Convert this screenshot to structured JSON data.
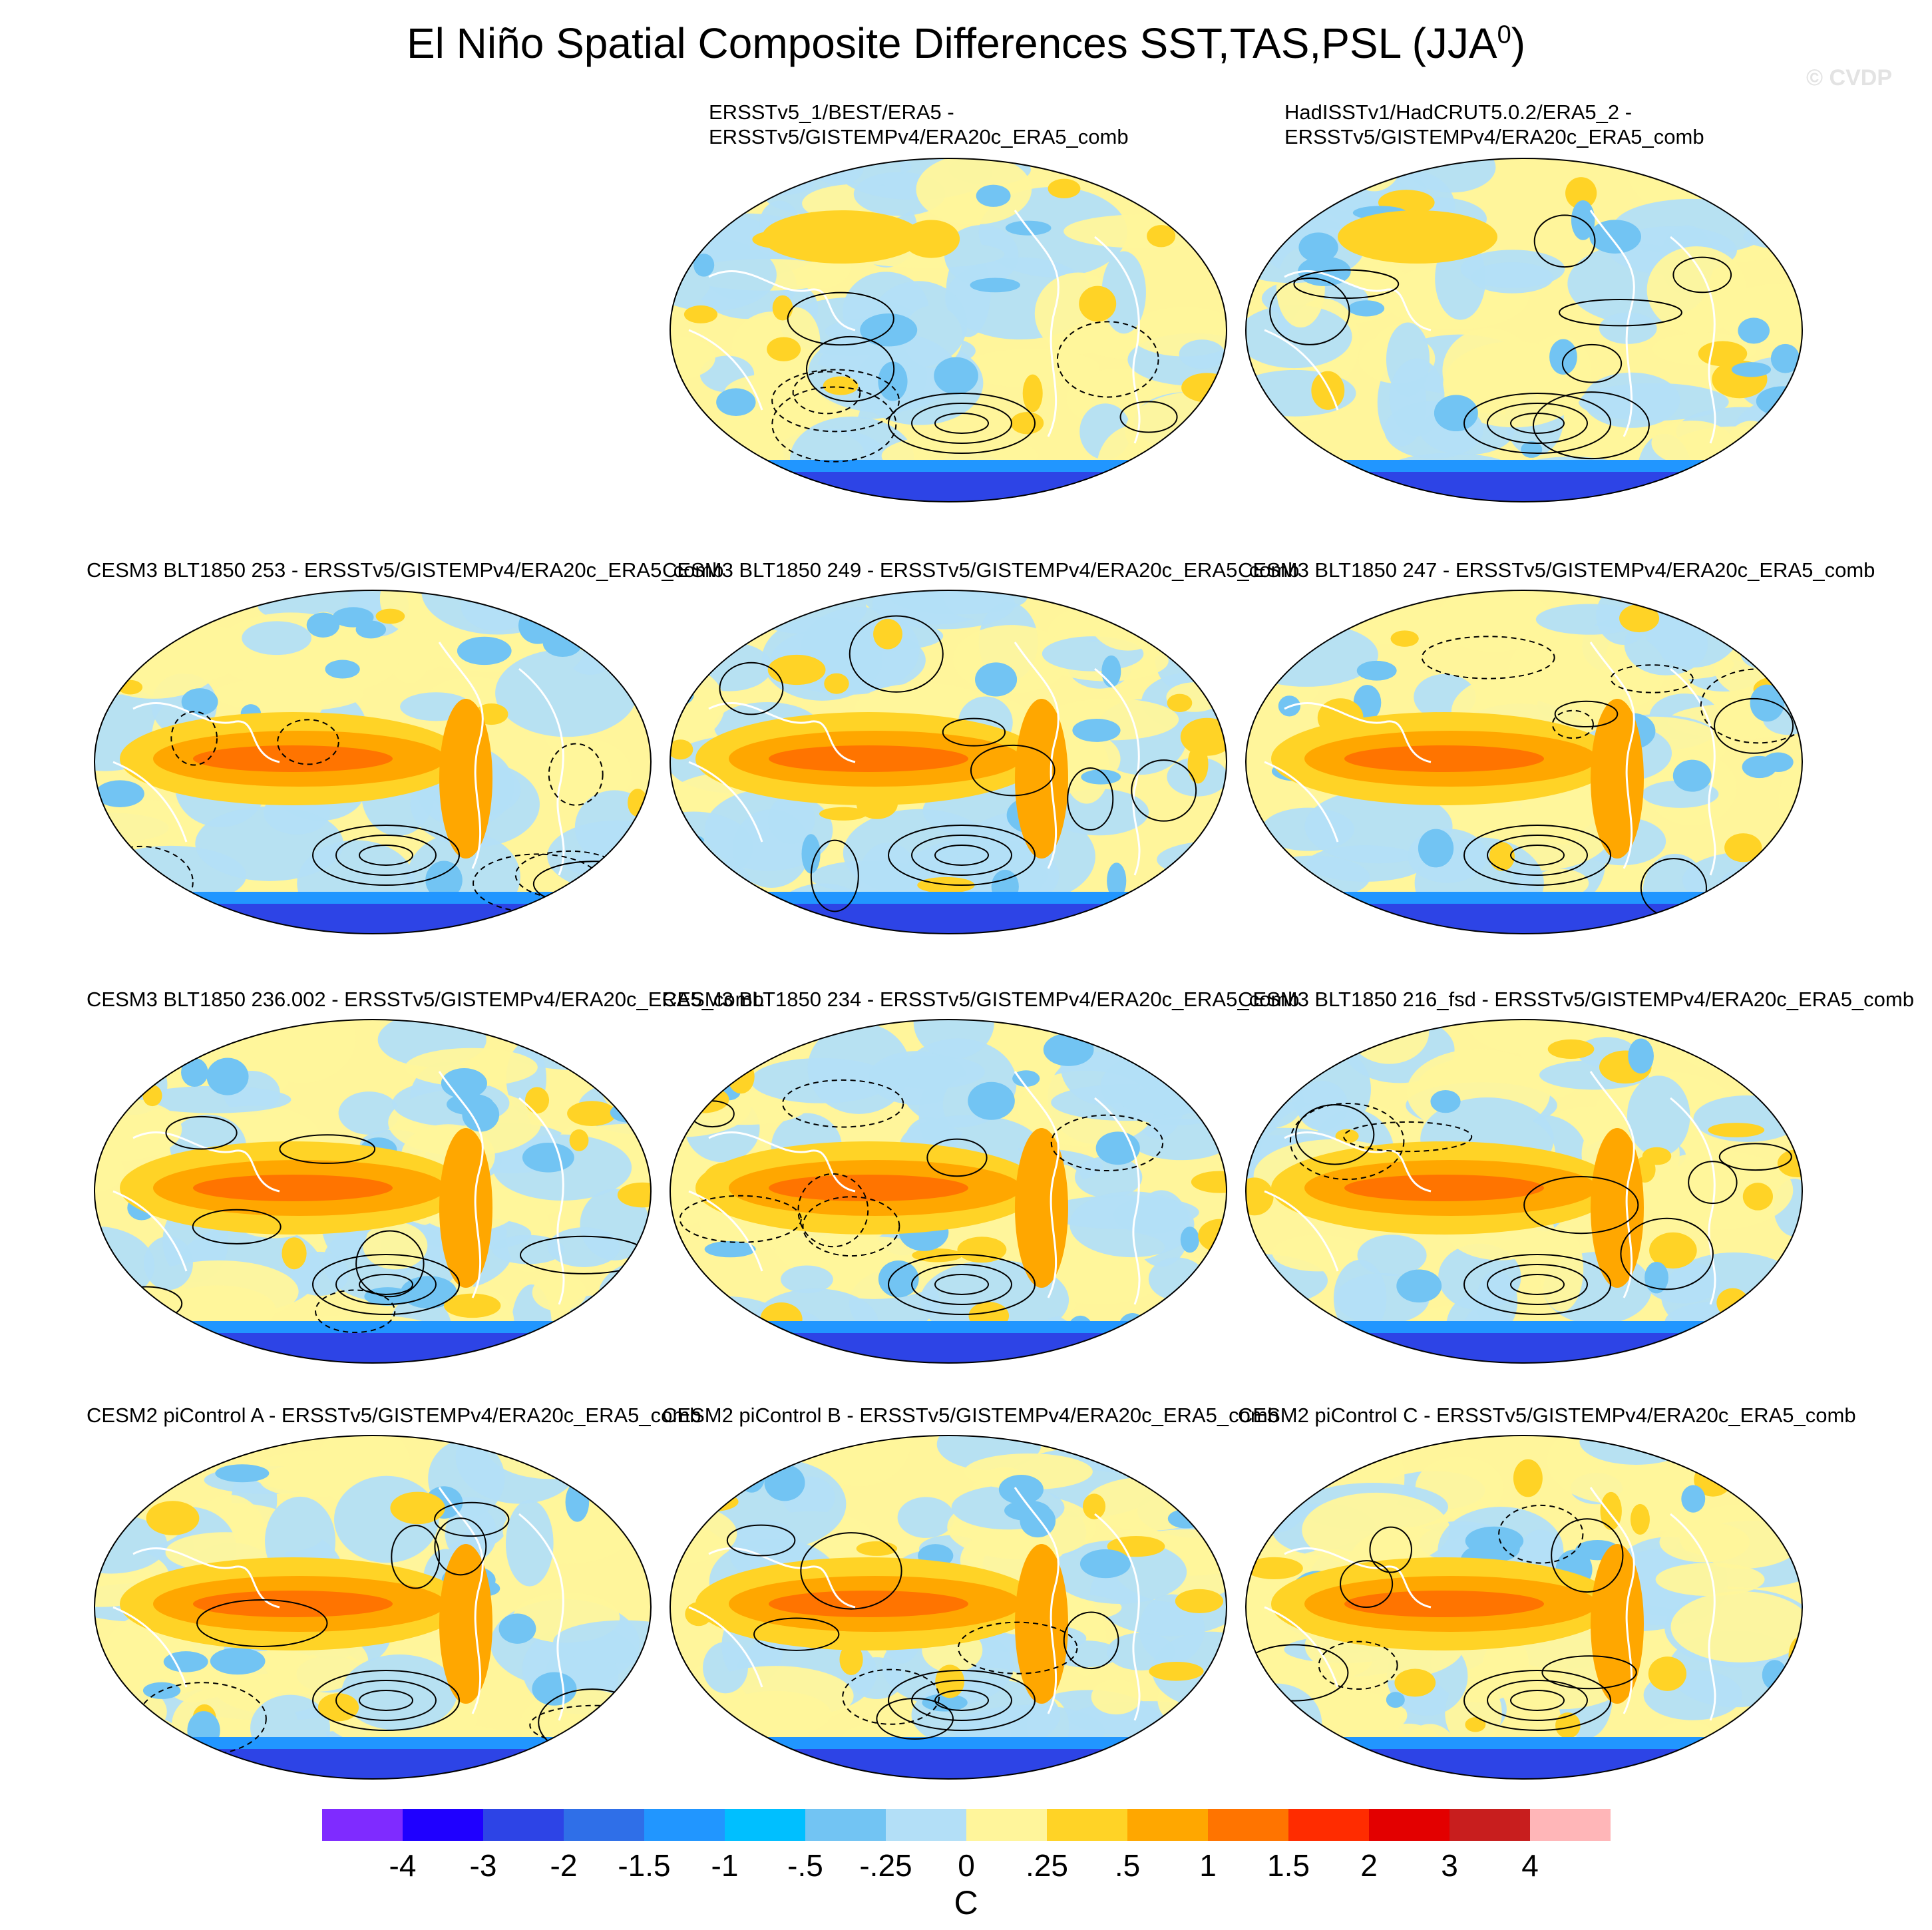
{
  "figure": {
    "title": "El Niño Spatial Composite Differences SST,TAS,PSL (JJA",
    "title_sup": "0",
    "title_end": ")",
    "watermark": "© CVDP"
  },
  "panels": [
    {
      "id": "p1",
      "row": 0,
      "col": 1,
      "title_lines": [
        "ERSSTv5_1/BEST/ERA5 -",
        "ERSSTv5/GISTEMPv4/ERA20c_ERA5_comb"
      ],
      "pattern": "obs"
    },
    {
      "id": "p2",
      "row": 0,
      "col": 2,
      "title_lines": [
        "HadISSTv1/HadCRUT5.0.2/ERA5_2 -",
        "ERSSTv5/GISTEMPv4/ERA20c_ERA5_comb"
      ],
      "pattern": "obs"
    },
    {
      "id": "p3",
      "row": 1,
      "col": 0,
      "title_lines": [
        "CESM3 BLT1850 253 - ERSSTv5/GISTEMPv4/ERA20c_ERA5_comb"
      ],
      "pattern": "model"
    },
    {
      "id": "p4",
      "row": 1,
      "col": 1,
      "title_lines": [
        "CESM3 BLT1850 249 - ERSSTv5/GISTEMPv4/ERA20c_ERA5_comb"
      ],
      "pattern": "model"
    },
    {
      "id": "p5",
      "row": 1,
      "col": 2,
      "title_lines": [
        "CESM3 BLT1850 247 - ERSSTv5/GISTEMPv4/ERA20c_ERA5_comb"
      ],
      "pattern": "model"
    },
    {
      "id": "p6",
      "row": 2,
      "col": 0,
      "title_lines": [
        "CESM3 BLT1850 236.002 - ERSSTv5/GISTEMPv4/ERA20c_ERA5_comb"
      ],
      "pattern": "model"
    },
    {
      "id": "p7",
      "row": 2,
      "col": 1,
      "title_lines": [
        "CESM3 BLT1850 234 - ERSSTv5/GISTEMPv4/ERA20c_ERA5_comb"
      ],
      "pattern": "model"
    },
    {
      "id": "p8",
      "row": 2,
      "col": 2,
      "title_lines": [
        "CESM3 BLT1850 216_fsd - ERSSTv5/GISTEMPv4/ERA20c_ERA5_comb"
      ],
      "pattern": "model"
    },
    {
      "id": "p9",
      "row": 3,
      "col": 0,
      "title_lines": [
        "CESM2 piControl A - ERSSTv5/GISTEMPv4/ERA20c_ERA5_comb"
      ],
      "pattern": "control"
    },
    {
      "id": "p10",
      "row": 3,
      "col": 1,
      "title_lines": [
        "CESM2 piControl B - ERSSTv5/GISTEMPv4/ERA20c_ERA5_comb"
      ],
      "pattern": "control"
    },
    {
      "id": "p11",
      "row": 3,
      "col": 2,
      "title_lines": [
        "CESM2 piControl C - ERSSTv5/GISTEMPv4/ERA20c_ERA5_comb"
      ],
      "pattern": "control"
    }
  ],
  "colorbar": {
    "colors": [
      "#7f2bff",
      "#1f00ff",
      "#2d44e6",
      "#2f6fe8",
      "#2196ff",
      "#00bfff",
      "#72c4f3",
      "#b3dff7",
      "#fff59b",
      "#ffd326",
      "#ffa700",
      "#ff7400",
      "#ff2c00",
      "#e30000",
      "#c81e1e",
      "#ffb6b8"
    ],
    "labels": [
      "-4",
      "-3",
      "-2",
      "-1.5",
      "-1",
      "-.5",
      "-.25",
      "0",
      ".25",
      ".5",
      "1",
      "1.5",
      "2",
      "3",
      "4"
    ],
    "units": "C"
  }
}
